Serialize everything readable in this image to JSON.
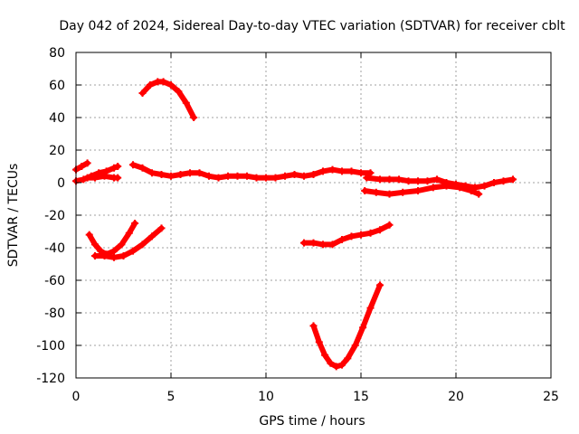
{
  "chart_data": {
    "type": "scatter",
    "title": "Day 042 of 2024, Sidereal Day-to-day VTEC variation (SDTVAR) for receiver cblt",
    "xlabel": "GPS time / hours",
    "ylabel": "SDTVAR / TECUs",
    "xlim": [
      0,
      25
    ],
    "ylim": [
      -120,
      80
    ],
    "x_ticks": [
      0,
      5,
      10,
      15,
      20,
      25
    ],
    "y_ticks": [
      -120,
      -100,
      -80,
      -60,
      -40,
      -20,
      0,
      20,
      40,
      60,
      80
    ],
    "x_tick_labels": [
      "0",
      "5",
      "10",
      "15",
      "20",
      "25"
    ],
    "y_tick_labels": [
      "-120",
      "-100",
      "-80",
      "-60",
      "-40",
      "-20",
      "0",
      "20",
      "40",
      "60",
      "80"
    ],
    "grid": true,
    "color": "#ff0000",
    "series": [
      {
        "x": [
          0.0,
          0.3,
          0.6
        ],
        "y": [
          8,
          10,
          12
        ]
      },
      {
        "x": [
          0.0,
          0.4,
          0.8,
          1.2,
          1.6,
          2.0,
          2.2
        ],
        "y": [
          1,
          2,
          4,
          6,
          7,
          9,
          10
        ]
      },
      {
        "x": [
          0.6,
          1.0,
          1.5,
          2.0,
          2.2
        ],
        "y": [
          3,
          3,
          4,
          3,
          3
        ]
      },
      {
        "x": [
          3.0,
          3.5,
          4.0,
          4.5,
          5.0,
          5.5,
          6.0,
          6.5,
          7.0,
          7.5,
          8.0,
          8.5,
          9.0,
          9.5,
          10.0,
          10.5,
          11.0,
          11.5,
          12.0,
          12.5,
          13.0,
          13.5,
          14.0,
          14.5,
          15.0,
          15.5
        ],
        "y": [
          11,
          9,
          6,
          5,
          4,
          5,
          6,
          6,
          4,
          3,
          4,
          4,
          4,
          3,
          3,
          3,
          4,
          5,
          4,
          5,
          7,
          8,
          7,
          7,
          6,
          6
        ]
      },
      {
        "x": [
          15.3,
          16.0,
          16.5,
          17.0,
          17.5,
          18.0,
          18.5,
          19.0,
          19.5,
          20.0,
          20.5,
          21.0,
          21.5,
          22.0,
          22.5,
          23.0
        ],
        "y": [
          3,
          2,
          2,
          2,
          1,
          1,
          1,
          2,
          0,
          -1,
          -2,
          -3,
          -2,
          0,
          1,
          2
        ]
      },
      {
        "x": [
          15.2,
          15.8,
          16.5,
          17.2,
          18.0,
          18.8,
          19.5,
          20.2,
          20.8,
          21.2
        ],
        "y": [
          -5,
          -6,
          -7,
          -6,
          -5,
          -3,
          -2,
          -3,
          -5,
          -7
        ]
      },
      {
        "x": [
          3.5,
          3.9,
          4.3,
          4.6,
          5.0,
          5.4,
          5.8,
          6.2
        ],
        "y": [
          55,
          60,
          62,
          62,
          60,
          56,
          49,
          40
        ]
      },
      {
        "x": [
          0.7,
          1.0,
          1.3,
          1.6,
          2.0,
          2.4,
          2.8,
          3.1
        ],
        "y": [
          -32,
          -38,
          -42,
          -44,
          -42,
          -38,
          -31,
          -25
        ]
      },
      {
        "x": [
          1.0,
          1.5,
          2.0,
          2.5,
          3.0,
          3.5,
          4.0,
          4.5
        ],
        "y": [
          -45,
          -45,
          -46,
          -45,
          -42,
          -38,
          -33,
          -28
        ]
      },
      {
        "x": [
          12.0,
          12.5,
          13.0,
          13.5,
          14.0,
          14.5,
          15.0,
          15.5,
          16.0,
          16.5
        ],
        "y": [
          -37,
          -37,
          -38,
          -38,
          -35,
          -33,
          -32,
          -31,
          -29,
          -26
        ]
      },
      {
        "x": [
          12.5,
          12.8,
          13.1,
          13.4,
          13.7,
          14.0,
          14.3,
          14.7,
          15.1,
          15.5,
          16.0
        ],
        "y": [
          -88,
          -98,
          -106,
          -111,
          -113,
          -112,
          -108,
          -100,
          -89,
          -77,
          -63
        ]
      }
    ]
  }
}
